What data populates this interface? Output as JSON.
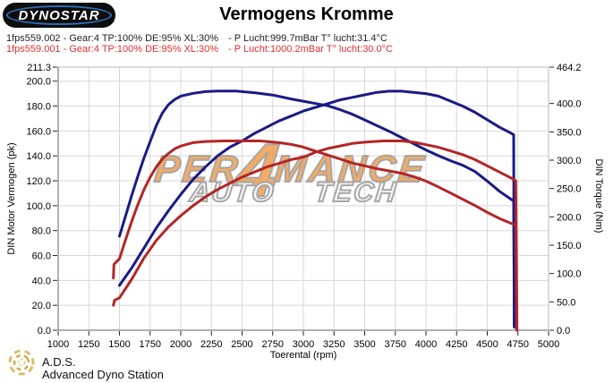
{
  "header": {
    "logo_text": "DYNOSTAR",
    "logo_fineprint": "…",
    "title": "Vermogens Kromme"
  },
  "legend": {
    "rows": [
      {
        "run": "1fps559.002 - Gear:4 TP:100% DE:95% XL:30%",
        "ambient": "- P Lucht:999.7mBar T° lucht:31.4°C",
        "color": "#1f1f1f"
      },
      {
        "run": "1fps559.001 - Gear:4 TP:100% DE:95% XL:30%",
        "ambient": "- P Lucht:1000.2mBar T° lucht:30.0°C",
        "color": "#e03030"
      }
    ]
  },
  "watermark": {
    "line1_pre": "PER",
    "line1_digit": "4",
    "line1_post": "MANCE",
    "line2_left": "AUTO",
    "line2_right": "TECH",
    "orange": "#f0a052",
    "gray": "#9c9c9c"
  },
  "footer": {
    "abbr": "A.D.S.",
    "name": "Advanced Dyno Station"
  },
  "chart_data": {
    "type": "line",
    "title": "Vermogens Kromme",
    "xlabel": "Toerental (rpm)",
    "ylabel_left": "DIN Motor Vermogen (pk)",
    "ylabel_right": "DIN Torque (Nm)",
    "grid": true,
    "x_range": [
      1000,
      5000
    ],
    "y_left_range": [
      0,
      211.3
    ],
    "y_right_range": [
      0,
      464.2
    ],
    "x_ticks": [
      1000,
      1250,
      1500,
      1750,
      2000,
      2250,
      2500,
      2750,
      3000,
      3250,
      3500,
      3750,
      4000,
      4250,
      4500,
      4750,
      5000
    ],
    "y_left_ticks": [
      {
        "value": 211.3,
        "label": "211.3"
      },
      {
        "value": 200,
        "label": "200.0"
      },
      {
        "value": 180,
        "label": "180.0"
      },
      {
        "value": 160,
        "label": "160.0"
      },
      {
        "value": 140,
        "label": "140.0"
      },
      {
        "value": 120,
        "label": "120.0"
      },
      {
        "value": 100,
        "label": "100.0"
      },
      {
        "value": 80,
        "label": "80.0"
      },
      {
        "value": 60,
        "label": "60.0"
      },
      {
        "value": 40,
        "label": "40.0"
      },
      {
        "value": 20,
        "label": "20.0"
      },
      {
        "value": 0,
        "label": "0.0"
      }
    ],
    "y_right_ticks": [
      {
        "value": 464.2,
        "label": "464.2"
      },
      {
        "value": 400,
        "label": "400.0"
      },
      {
        "value": 350,
        "label": "350.0"
      },
      {
        "value": 300,
        "label": "300.0"
      },
      {
        "value": 250,
        "label": "250.0"
      },
      {
        "value": 200,
        "label": "200.0"
      },
      {
        "value": 150,
        "label": "150.0"
      },
      {
        "value": 100,
        "label": "100.0"
      },
      {
        "value": 50,
        "label": "50.0"
      },
      {
        "value": 0,
        "label": "0.0"
      }
    ],
    "colors": {
      "run_002": "#1a1a87",
      "run_001": "#b32626",
      "grid": "#d8d8d8",
      "border": "#b8b8b8",
      "axis": "#666666"
    },
    "series": [
      {
        "name": "1fps559.002 torque",
        "axis": "right",
        "unit": "Nm",
        "color": "#1a1a87",
        "points": [
          [
            1500,
            166
          ],
          [
            1550,
            202
          ],
          [
            1600,
            238
          ],
          [
            1650,
            272
          ],
          [
            1700,
            304
          ],
          [
            1750,
            333
          ],
          [
            1800,
            361
          ],
          [
            1850,
            383
          ],
          [
            1900,
            398
          ],
          [
            1950,
            407
          ],
          [
            2000,
            413
          ],
          [
            2100,
            418
          ],
          [
            2200,
            421
          ],
          [
            2300,
            422
          ],
          [
            2450,
            422
          ],
          [
            2600,
            419
          ],
          [
            2750,
            415
          ],
          [
            2900,
            408
          ],
          [
            3000,
            404
          ],
          [
            3100,
            400
          ],
          [
            3200,
            396
          ],
          [
            3300,
            389
          ],
          [
            3400,
            381
          ],
          [
            3500,
            371
          ],
          [
            3600,
            361
          ],
          [
            3700,
            351
          ],
          [
            3800,
            340
          ],
          [
            3900,
            329
          ],
          [
            4000,
            318
          ],
          [
            4100,
            308
          ],
          [
            4200,
            299
          ],
          [
            4300,
            291
          ],
          [
            4400,
            280
          ],
          [
            4500,
            263
          ],
          [
            4600,
            245
          ],
          [
            4680,
            233
          ],
          [
            4715,
            228
          ],
          [
            4722,
            5
          ]
        ]
      },
      {
        "name": "1fps559.002 power",
        "axis": "left",
        "unit": "pk",
        "color": "#1a1a87",
        "points": [
          [
            1500,
            36
          ],
          [
            1600,
            50
          ],
          [
            1700,
            66
          ],
          [
            1800,
            82
          ],
          [
            1900,
            96
          ],
          [
            2000,
            109
          ],
          [
            2100,
            121
          ],
          [
            2200,
            131
          ],
          [
            2300,
            140
          ],
          [
            2400,
            147
          ],
          [
            2500,
            152
          ],
          [
            2600,
            158
          ],
          [
            2700,
            163
          ],
          [
            2800,
            168
          ],
          [
            2900,
            172
          ],
          [
            3000,
            176
          ],
          [
            3100,
            179
          ],
          [
            3200,
            182
          ],
          [
            3300,
            185
          ],
          [
            3400,
            187
          ],
          [
            3500,
            189
          ],
          [
            3600,
            191
          ],
          [
            3700,
            192
          ],
          [
            3800,
            192
          ],
          [
            3900,
            191
          ],
          [
            4000,
            190
          ],
          [
            4100,
            188
          ],
          [
            4200,
            184
          ],
          [
            4300,
            180
          ],
          [
            4400,
            175
          ],
          [
            4500,
            169
          ],
          [
            4600,
            163
          ],
          [
            4680,
            159
          ],
          [
            4715,
            157
          ],
          [
            4720,
            3
          ]
        ]
      },
      {
        "name": "1fps559.001 torque",
        "axis": "right",
        "unit": "Nm",
        "color": "#b32626",
        "points": [
          [
            1450,
            92
          ],
          [
            1455,
            116
          ],
          [
            1500,
            126
          ],
          [
            1550,
            160
          ],
          [
            1600,
            192
          ],
          [
            1650,
            222
          ],
          [
            1700,
            248
          ],
          [
            1750,
            270
          ],
          [
            1800,
            288
          ],
          [
            1850,
            302
          ],
          [
            1900,
            312
          ],
          [
            1950,
            320
          ],
          [
            2000,
            325
          ],
          [
            2100,
            331
          ],
          [
            2200,
            333
          ],
          [
            2350,
            334
          ],
          [
            2500,
            334
          ],
          [
            2650,
            334
          ],
          [
            2800,
            331
          ],
          [
            2900,
            328
          ],
          [
            3000,
            323
          ],
          [
            3100,
            316
          ],
          [
            3200,
            309
          ],
          [
            3300,
            302
          ],
          [
            3400,
            295
          ],
          [
            3500,
            290
          ],
          [
            3600,
            285
          ],
          [
            3700,
            281
          ],
          [
            3800,
            277
          ],
          [
            3900,
            271
          ],
          [
            4000,
            263
          ],
          [
            4100,
            253
          ],
          [
            4200,
            242
          ],
          [
            4300,
            231
          ],
          [
            4400,
            220
          ],
          [
            4500,
            208
          ],
          [
            4600,
            197
          ],
          [
            4700,
            188
          ],
          [
            4732,
            185
          ],
          [
            4740,
            0
          ]
        ]
      },
      {
        "name": "1fps559.001 power",
        "axis": "left",
        "unit": "pk",
        "color": "#b32626",
        "points": [
          [
            1450,
            20
          ],
          [
            1460,
            24
          ],
          [
            1500,
            26
          ],
          [
            1600,
            41
          ],
          [
            1700,
            58
          ],
          [
            1800,
            72
          ],
          [
            1900,
            83
          ],
          [
            2000,
            92
          ],
          [
            2100,
            100
          ],
          [
            2200,
            107
          ],
          [
            2300,
            113
          ],
          [
            2400,
            118
          ],
          [
            2500,
            123
          ],
          [
            2600,
            127
          ],
          [
            2700,
            131
          ],
          [
            2800,
            134
          ],
          [
            2900,
            137
          ],
          [
            3000,
            139
          ],
          [
            3100,
            143
          ],
          [
            3200,
            146
          ],
          [
            3300,
            148
          ],
          [
            3400,
            150
          ],
          [
            3500,
            151
          ],
          [
            3650,
            152
          ],
          [
            3800,
            152
          ],
          [
            3900,
            151
          ],
          [
            4000,
            149
          ],
          [
            4100,
            147
          ],
          [
            4200,
            144
          ],
          [
            4300,
            141
          ],
          [
            4400,
            137
          ],
          [
            4500,
            132
          ],
          [
            4600,
            127
          ],
          [
            4700,
            122
          ],
          [
            4732,
            120
          ],
          [
            4742,
            0
          ]
        ]
      }
    ]
  }
}
